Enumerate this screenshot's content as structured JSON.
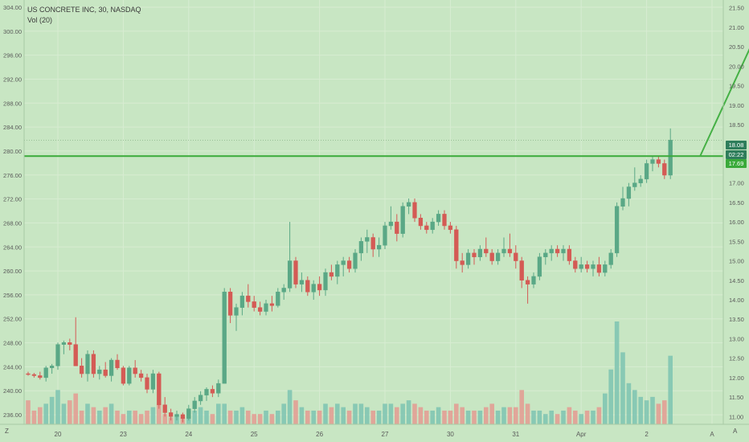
{
  "header": {
    "symbol_line": "US CONCRETE INC, 30, NASDAQ",
    "volume_label": "Vol (20)"
  },
  "colors": {
    "background": "#c8e6c3",
    "grid": "#d7ecd2",
    "up": "#6dbfa2",
    "up_body": "#5aa886",
    "down": "#d45b55",
    "vol_up": "#7cc3b1",
    "vol_down": "#e49a92",
    "hline": "#3aaa3a",
    "arrow": "#45b045",
    "axis_text": "#5a5a5a",
    "axis_bg": "#c8e6c3"
  },
  "chart_data": {
    "type": "candlestick",
    "left_axis": {
      "ticks": [
        "236.00",
        "240.00",
        "244.00",
        "248.00",
        "252.00",
        "256.00",
        "260.00",
        "264.00",
        "268.00",
        "272.00",
        "276.00",
        "280.00",
        "284.00",
        "288.00",
        "292.00",
        "296.00",
        "300.00",
        "304.00"
      ],
      "range": [
        234.4,
        305.2
      ]
    },
    "right_axis": {
      "ticks": [
        "11.00",
        "11.50",
        "12.00",
        "12.50",
        "13.00",
        "13.50",
        "14.00",
        "14.50",
        "15.00",
        "15.50",
        "16.00",
        "16.50",
        "17.00",
        "17.50",
        "18.00",
        "18.50",
        "19.00",
        "19.50",
        "20.00",
        "20.50",
        "21.00",
        "21.50"
      ],
      "range": [
        10.8,
        21.7
      ]
    },
    "x_labels": [
      {
        "label": "20",
        "index": 5
      },
      {
        "label": "23",
        "index": 16
      },
      {
        "label": "24",
        "index": 27
      },
      {
        "label": "25",
        "index": 38
      },
      {
        "label": "26",
        "index": 49
      },
      {
        "label": "27",
        "index": 60
      },
      {
        "label": "30",
        "index": 71
      },
      {
        "label": "31",
        "index": 82
      },
      {
        "label": "Apr",
        "index": 93
      },
      {
        "label": "2",
        "index": 104
      },
      {
        "label": "A",
        "index": 115
      }
    ],
    "candles": [
      [
        12.1,
        12.15,
        12.05,
        12.08,
        0.35
      ],
      [
        12.08,
        12.12,
        12.0,
        12.05,
        0.2
      ],
      [
        12.05,
        12.15,
        11.95,
        12.0,
        0.25
      ],
      [
        12.0,
        12.3,
        11.9,
        12.25,
        0.3
      ],
      [
        12.25,
        12.35,
        12.1,
        12.3,
        0.4
      ],
      [
        12.3,
        12.9,
        12.2,
        12.85,
        0.5
      ],
      [
        12.85,
        12.95,
        12.6,
        12.9,
        0.3
      ],
      [
        12.9,
        13.0,
        12.7,
        12.85,
        0.35
      ],
      [
        12.85,
        13.55,
        12.3,
        12.3,
        0.45
      ],
      [
        12.3,
        12.5,
        12.0,
        12.1,
        0.2
      ],
      [
        12.1,
        12.7,
        11.9,
        12.6,
        0.3
      ],
      [
        12.6,
        12.7,
        12.0,
        12.1,
        0.25
      ],
      [
        12.1,
        12.3,
        11.95,
        12.2,
        0.2
      ],
      [
        12.2,
        12.4,
        12.0,
        12.05,
        0.25
      ],
      [
        12.05,
        12.5,
        11.9,
        12.45,
        0.3
      ],
      [
        12.45,
        12.6,
        12.2,
        12.25,
        0.2
      ],
      [
        12.25,
        12.3,
        11.8,
        11.85,
        0.15
      ],
      [
        11.85,
        12.3,
        11.8,
        12.25,
        0.2
      ],
      [
        12.25,
        12.45,
        12.0,
        12.1,
        0.2
      ],
      [
        12.1,
        12.2,
        11.9,
        12.0,
        0.15
      ],
      [
        12.0,
        12.1,
        11.6,
        11.7,
        0.2
      ],
      [
        11.7,
        12.2,
        11.6,
        12.1,
        0.25
      ],
      [
        12.1,
        12.15,
        11.2,
        11.3,
        0.3
      ],
      [
        11.3,
        11.5,
        11.0,
        11.1,
        0.15
      ],
      [
        11.1,
        11.2,
        10.9,
        11.0,
        0.1
      ],
      [
        11.0,
        11.15,
        10.9,
        11.05,
        0.15
      ],
      [
        11.05,
        11.1,
        10.85,
        10.95,
        0.1
      ],
      [
        10.95,
        11.3,
        10.9,
        11.2,
        0.2
      ],
      [
        11.2,
        11.5,
        11.1,
        11.4,
        0.2
      ],
      [
        11.4,
        11.65,
        11.3,
        11.55,
        0.25
      ],
      [
        11.55,
        11.75,
        11.4,
        11.7,
        0.2
      ],
      [
        11.7,
        11.8,
        11.5,
        11.6,
        0.15
      ],
      [
        11.6,
        11.95,
        11.5,
        11.85,
        0.3
      ],
      [
        11.85,
        14.3,
        11.85,
        14.2,
        0.3
      ],
      [
        14.2,
        14.3,
        13.4,
        13.6,
        0.2
      ],
      [
        13.6,
        13.9,
        13.2,
        13.8,
        0.2
      ],
      [
        13.8,
        14.2,
        13.6,
        14.1,
        0.25
      ],
      [
        14.1,
        14.4,
        13.8,
        13.95,
        0.2
      ],
      [
        13.95,
        14.1,
        13.7,
        13.8,
        0.15
      ],
      [
        13.8,
        13.95,
        13.6,
        13.7,
        0.15
      ],
      [
        13.7,
        14.0,
        13.6,
        13.9,
        0.2
      ],
      [
        13.9,
        14.1,
        13.7,
        13.85,
        0.15
      ],
      [
        13.85,
        14.3,
        13.8,
        14.2,
        0.2
      ],
      [
        14.2,
        14.4,
        14.0,
        14.3,
        0.3
      ],
      [
        14.3,
        16.0,
        14.2,
        15.0,
        0.5
      ],
      [
        15.0,
        15.1,
        14.3,
        14.4,
        0.35
      ],
      [
        14.4,
        14.7,
        14.2,
        14.5,
        0.25
      ],
      [
        14.5,
        14.6,
        14.1,
        14.2,
        0.2
      ],
      [
        14.2,
        14.5,
        14.0,
        14.4,
        0.2
      ],
      [
        14.4,
        14.6,
        14.1,
        14.25,
        0.2
      ],
      [
        14.25,
        14.8,
        14.1,
        14.7,
        0.3
      ],
      [
        14.7,
        14.9,
        14.5,
        14.6,
        0.25
      ],
      [
        14.6,
        15.0,
        14.4,
        14.9,
        0.3
      ],
      [
        14.9,
        15.1,
        14.6,
        15.0,
        0.25
      ],
      [
        15.0,
        15.1,
        14.7,
        14.8,
        0.2
      ],
      [
        14.8,
        15.3,
        14.7,
        15.2,
        0.3
      ],
      [
        15.2,
        15.6,
        15.0,
        15.5,
        0.3
      ],
      [
        15.5,
        15.8,
        15.2,
        15.6,
        0.25
      ],
      [
        15.6,
        15.7,
        15.1,
        15.3,
        0.2
      ],
      [
        15.3,
        15.6,
        15.1,
        15.4,
        0.2
      ],
      [
        15.4,
        16.0,
        15.3,
        15.9,
        0.3
      ],
      [
        15.9,
        16.4,
        15.8,
        16.0,
        0.3
      ],
      [
        16.0,
        16.2,
        15.5,
        15.7,
        0.25
      ],
      [
        15.7,
        16.5,
        15.6,
        16.4,
        0.3
      ],
      [
        16.4,
        16.6,
        16.2,
        16.5,
        0.35
      ],
      [
        16.5,
        16.6,
        16.0,
        16.1,
        0.3
      ],
      [
        16.1,
        16.2,
        15.8,
        15.9,
        0.25
      ],
      [
        15.9,
        16.0,
        15.7,
        15.8,
        0.2
      ],
      [
        15.8,
        16.1,
        15.7,
        16.0,
        0.2
      ],
      [
        16.0,
        16.3,
        15.9,
        16.2,
        0.25
      ],
      [
        16.2,
        16.3,
        15.8,
        15.9,
        0.2
      ],
      [
        15.9,
        16.0,
        15.7,
        15.8,
        0.2
      ],
      [
        15.8,
        15.9,
        14.8,
        15.0,
        0.3
      ],
      [
        15.0,
        15.2,
        14.7,
        14.9,
        0.25
      ],
      [
        14.9,
        15.3,
        14.8,
        15.2,
        0.2
      ],
      [
        15.2,
        15.3,
        14.9,
        15.1,
        0.2
      ],
      [
        15.1,
        15.4,
        15.0,
        15.3,
        0.2
      ],
      [
        15.3,
        15.6,
        15.1,
        15.2,
        0.25
      ],
      [
        15.2,
        15.3,
        14.9,
        15.0,
        0.3
      ],
      [
        15.0,
        15.3,
        14.9,
        15.2,
        0.2
      ],
      [
        15.2,
        15.6,
        15.1,
        15.3,
        0.25
      ],
      [
        15.3,
        15.7,
        15.1,
        15.2,
        0.25
      ],
      [
        15.2,
        15.4,
        14.8,
        15.0,
        0.25
      ],
      [
        15.0,
        15.1,
        14.3,
        14.5,
        0.5
      ],
      [
        14.5,
        14.6,
        13.9,
        14.4,
        0.3
      ],
      [
        14.4,
        14.7,
        14.3,
        14.6,
        0.2
      ],
      [
        14.6,
        15.2,
        14.5,
        15.1,
        0.2
      ],
      [
        15.1,
        15.3,
        14.9,
        15.2,
        0.15
      ],
      [
        15.2,
        15.4,
        15.0,
        15.3,
        0.2
      ],
      [
        15.3,
        15.4,
        15.1,
        15.2,
        0.15
      ],
      [
        15.2,
        15.4,
        15.0,
        15.3,
        0.2
      ],
      [
        15.3,
        15.4,
        14.9,
        15.0,
        0.25
      ],
      [
        15.0,
        15.1,
        14.7,
        14.8,
        0.2
      ],
      [
        14.8,
        15.1,
        14.7,
        14.9,
        0.15
      ],
      [
        14.9,
        15.0,
        14.7,
        14.8,
        0.2
      ],
      [
        14.8,
        15.0,
        14.6,
        14.9,
        0.2
      ],
      [
        14.9,
        15.1,
        14.6,
        14.7,
        0.25
      ],
      [
        14.7,
        15.0,
        14.6,
        14.9,
        0.45
      ],
      [
        14.9,
        15.3,
        14.8,
        15.2,
        0.8
      ],
      [
        15.2,
        16.5,
        15.1,
        16.4,
        1.5
      ],
      [
        16.4,
        16.9,
        16.3,
        16.6,
        1.05
      ],
      [
        16.6,
        17.0,
        16.4,
        16.9,
        0.6
      ],
      [
        16.9,
        17.4,
        16.8,
        17.0,
        0.5
      ],
      [
        17.0,
        17.2,
        16.9,
        17.1,
        0.4
      ],
      [
        17.1,
        17.6,
        17.0,
        17.5,
        0.35
      ],
      [
        17.5,
        17.7,
        17.3,
        17.6,
        0.4
      ],
      [
        17.6,
        17.7,
        17.4,
        17.5,
        0.3
      ],
      [
        17.5,
        17.6,
        17.1,
        17.2,
        0.35
      ],
      [
        17.2,
        18.4,
        17.1,
        18.1,
        1.0
      ]
    ],
    "current_price": "18.08",
    "countdown": "02:22",
    "hline_price": "17.69",
    "annotation": {
      "type": "arrow",
      "from": [
        17.69,
        113
      ],
      "to": [
        21.0,
        123
      ]
    },
    "volume_series": {
      "name": "Vol (20)"
    }
  },
  "corners": {
    "left_bottom": "Z",
    "right_bottom": "A"
  }
}
